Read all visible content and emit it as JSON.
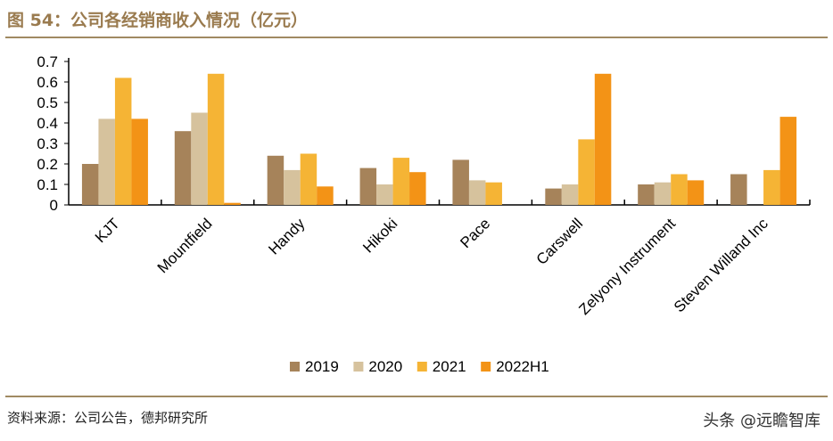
{
  "title": "图 54：公司各经销商收入情况（亿元）",
  "source": "资料来源：公司公告，德邦研究所",
  "watermark": "头条 @远瞻智库",
  "chart_data": {
    "type": "bar",
    "title": "公司各经销商收入情况（亿元）",
    "categories": [
      "KJT",
      "Mountfield",
      "Handy",
      "Hikoki",
      "Pace",
      "Carswell",
      "Zelyony Instrument",
      "Steven Willand Inc"
    ],
    "series": [
      {
        "name": "2019",
        "color": "#a6835a",
        "values": [
          0.2,
          0.36,
          0.24,
          0.18,
          0.22,
          0.08,
          0.1,
          0.15
        ]
      },
      {
        "name": "2020",
        "color": "#d6c29d",
        "values": [
          0.42,
          0.45,
          0.17,
          0.1,
          0.12,
          0.1,
          0.11,
          0
        ]
      },
      {
        "name": "2021",
        "color": "#f5b435",
        "values": [
          0.62,
          0.64,
          0.25,
          0.23,
          0.11,
          0.32,
          0.15,
          0.17
        ]
      },
      {
        "name": "2022H1",
        "color": "#f39316",
        "values": [
          0.42,
          0.01,
          0.09,
          0.16,
          0,
          0.64,
          0.12,
          0.43
        ]
      }
    ],
    "yticks": [
      "0",
      "0.1",
      "0.2",
      "0.3",
      "0.4",
      "0.5",
      "0.6",
      "0.7"
    ],
    "ylim": [
      0,
      0.7
    ],
    "legend": "bottom",
    "grid": false
  }
}
